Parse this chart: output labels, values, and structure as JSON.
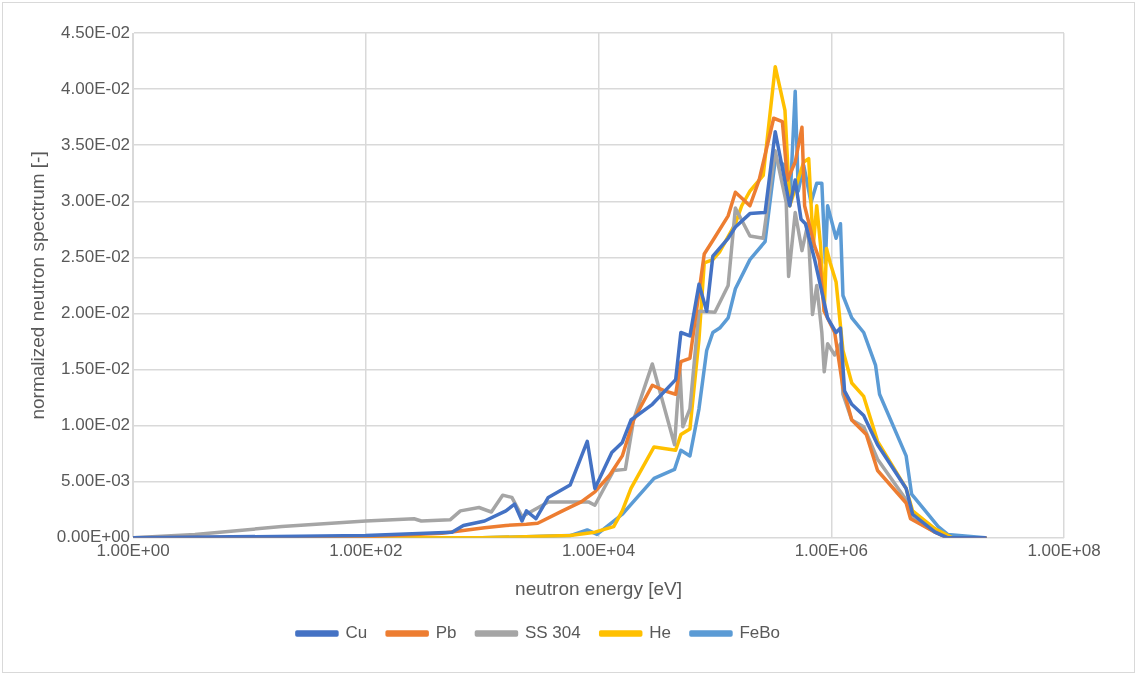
{
  "chart_data": {
    "type": "line",
    "xlabel": "neutron energy [eV]",
    "ylabel": "normalized neutron spectrum [-]",
    "log": "x",
    "grid": true,
    "legend": "bottom",
    "marker": "none",
    "line_style": "solid",
    "xlim": [
      1,
      100000000
    ],
    "xticks": [
      {
        "value": 1,
        "label": "1.00E+00"
      },
      {
        "value": 100,
        "label": "1.00E+02"
      },
      {
        "value": 10000,
        "label": "1.00E+04"
      },
      {
        "value": 1000000,
        "label": "1.00E+06"
      },
      {
        "value": 100000000,
        "label": "1.00E+08"
      }
    ],
    "ylim": [
      0,
      0.045
    ],
    "yticks": [
      {
        "value": 0,
        "label": "0.00E+00"
      },
      {
        "value": 0.005,
        "label": "5.00E-03"
      },
      {
        "value": 0.01,
        "label": "1.00E-02"
      },
      {
        "value": 0.015,
        "label": "1.50E-02"
      },
      {
        "value": 0.02,
        "label": "2.00E-02"
      },
      {
        "value": 0.025,
        "label": "2.50E-02"
      },
      {
        "value": 0.03,
        "label": "3.00E-02"
      },
      {
        "value": 0.035,
        "label": "3.50E-02"
      },
      {
        "value": 0.04,
        "label": "4.00E-02"
      },
      {
        "value": 0.045,
        "label": "4.50E-02"
      }
    ],
    "series": [
      {
        "name": "Cu",
        "color": "#4472c4",
        "x": [
          1,
          100,
          550,
          690,
          1050,
          1600,
          1900,
          2200,
          2400,
          2900,
          3700,
          5700,
          8000,
          9300,
          13000,
          16000,
          19000,
          29000,
          46000,
          51000,
          61000,
          73000,
          85000,
          96000,
          130000,
          150000,
          200000,
          270000,
          330000,
          440000,
          490000,
          550000,
          600000,
          720000,
          930000,
          1100000,
          1200000,
          1300000,
          1500000,
          1900000,
          2500000,
          4400000,
          5000000,
          7800000,
          10000000,
          21000000
        ],
        "values": [
          0,
          0.0002,
          0.0005,
          0.0011,
          0.0015,
          0.0024,
          0.003,
          0.0015,
          0.0024,
          0.0017,
          0.0036,
          0.0047,
          0.0086,
          0.0044,
          0.0076,
          0.0085,
          0.0105,
          0.0119,
          0.0141,
          0.0183,
          0.018,
          0.0226,
          0.0202,
          0.0251,
          0.0267,
          0.0277,
          0.0289,
          0.029,
          0.0362,
          0.0296,
          0.0319,
          0.0284,
          0.028,
          0.0248,
          0.0196,
          0.0183,
          0.0187,
          0.0131,
          0.0119,
          0.0109,
          0.0083,
          0.0044,
          0.0021,
          0.0005,
          0,
          0
        ]
      },
      {
        "name": "Pb",
        "color": "#ed7d31",
        "x": [
          1,
          100,
          450,
          1050,
          1600,
          2400,
          3000,
          4900,
          7100,
          9300,
          12500,
          16000,
          20000,
          29000,
          37000,
          46000,
          51000,
          61000,
          81000,
          96000,
          130000,
          150000,
          200000,
          240000,
          320000,
          380000,
          420000,
          490000,
          560000,
          590000,
          720000,
          790000,
          870000,
          1070000,
          1260000,
          1500000,
          2000000,
          2500000,
          4400000,
          4800000,
          7800000,
          10000000,
          21000000
        ],
        "values": [
          0,
          0.0001,
          0.0004,
          0.0009,
          0.0011,
          0.0012,
          0.0013,
          0.0024,
          0.0032,
          0.0041,
          0.0056,
          0.0073,
          0.0105,
          0.0136,
          0.0131,
          0.0128,
          0.0157,
          0.016,
          0.0253,
          0.0265,
          0.0287,
          0.0308,
          0.0296,
          0.0319,
          0.0374,
          0.0371,
          0.0319,
          0.0335,
          0.0366,
          0.0296,
          0.026,
          0.0248,
          0.0202,
          0.0183,
          0.0134,
          0.0105,
          0.0092,
          0.006,
          0.0031,
          0.0017,
          0.0005,
          0,
          0
        ]
      },
      {
        "name": "SS 304",
        "color": "#a5a5a5",
        "x": [
          1,
          3.4,
          19,
          100,
          260,
          300,
          530,
          650,
          940,
          1200,
          1500,
          1800,
          2200,
          2400,
          3700,
          8200,
          9300,
          13500,
          17000,
          20000,
          29000,
          45000,
          50000,
          53000,
          61000,
          73000,
          100000,
          130000,
          150000,
          200000,
          260000,
          330000,
          410000,
          430000,
          490000,
          560000,
          630000,
          690000,
          750000,
          830000,
          870000,
          930000,
          1070000,
          1200000,
          1260000,
          1500000,
          1900000,
          2500000,
          4400000,
          5000000,
          7800000,
          10000000,
          21000000
        ],
        "values": [
          0,
          0.0003,
          0.001,
          0.0015,
          0.0017,
          0.0015,
          0.0016,
          0.0024,
          0.0027,
          0.0023,
          0.0038,
          0.0036,
          0.0019,
          0.0021,
          0.0032,
          0.0032,
          0.0029,
          0.006,
          0.0061,
          0.0105,
          0.0155,
          0.0083,
          0.0151,
          0.0099,
          0.0115,
          0.0202,
          0.0201,
          0.0225,
          0.0294,
          0.0269,
          0.0267,
          0.0345,
          0.0299,
          0.0233,
          0.029,
          0.0256,
          0.028,
          0.0199,
          0.0225,
          0.0183,
          0.0148,
          0.0173,
          0.0163,
          0.0173,
          0.0128,
          0.0105,
          0.0099,
          0.007,
          0.0034,
          0.0017,
          0.0005,
          0,
          0
        ]
      },
      {
        "name": "He",
        "color": "#ffc000",
        "x": [
          1,
          1000,
          5700,
          9300,
          13500,
          16000,
          19000,
          30000,
          46000,
          51000,
          61000,
          73000,
          81000,
          96000,
          110000,
          123000,
          150000,
          170000,
          200000,
          260000,
          330000,
          400000,
          440000,
          580000,
          640000,
          700000,
          750000,
          810000,
          870000,
          910000,
          980000,
          1100000,
          1260000,
          1500000,
          1900000,
          2500000,
          4400000,
          5000000,
          7800000,
          11000000,
          21000000
        ],
        "values": [
          0,
          0,
          0.0002,
          0.0005,
          0.001,
          0.0024,
          0.0044,
          0.0081,
          0.0078,
          0.0092,
          0.0097,
          0.0177,
          0.0245,
          0.0248,
          0.0255,
          0.0264,
          0.028,
          0.0296,
          0.0309,
          0.0323,
          0.042,
          0.0381,
          0.0296,
          0.0335,
          0.0338,
          0.026,
          0.0296,
          0.026,
          0.0202,
          0.0258,
          0.0245,
          0.0228,
          0.0167,
          0.0138,
          0.0126,
          0.0086,
          0.0044,
          0.0024,
          0.0008,
          0,
          0
        ]
      },
      {
        "name": "FeBo",
        "color": "#5b9bd5",
        "x": [
          1,
          1000,
          5700,
          8000,
          9700,
          16000,
          30000,
          45000,
          51000,
          61000,
          73000,
          85000,
          96000,
          110000,
          130000,
          150000,
          200000,
          270000,
          330000,
          400000,
          440000,
          490000,
          520000,
          580000,
          670000,
          750000,
          830000,
          890000,
          930000,
          1100000,
          1200000,
          1260000,
          1500000,
          1900000,
          2400000,
          2600000,
          4400000,
          4900000,
          8300000,
          10000000,
          21000000
        ],
        "values": [
          0,
          0,
          0.0002,
          0.0007,
          0.0003,
          0.0021,
          0.0053,
          0.0061,
          0.0078,
          0.0073,
          0.0115,
          0.0167,
          0.0183,
          0.0187,
          0.0196,
          0.0222,
          0.0248,
          0.0264,
          0.0337,
          0.0332,
          0.0296,
          0.0398,
          0.0309,
          0.0332,
          0.0299,
          0.0316,
          0.0316,
          0.0245,
          0.0296,
          0.0267,
          0.028,
          0.0216,
          0.0196,
          0.0183,
          0.0154,
          0.0128,
          0.0073,
          0.0039,
          0.001,
          0.0003,
          0
        ]
      }
    ]
  }
}
